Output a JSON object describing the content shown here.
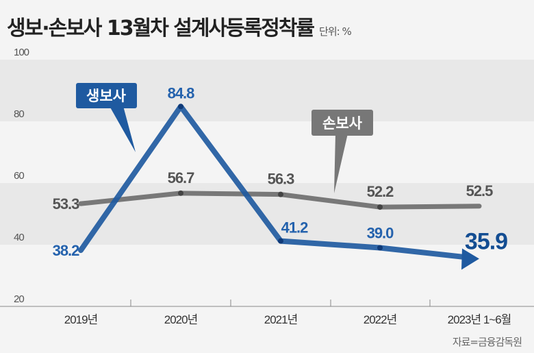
{
  "title": "생보·손보사 13월차 설계사등록정착률",
  "unit": "단위: %",
  "source": "자료=금융감독원",
  "chart_data": {
    "type": "line",
    "categories": [
      "2019년",
      "2020년",
      "2021년",
      "2022년",
      "2023년 1~6월"
    ],
    "ylim": [
      20,
      100
    ],
    "yticks": [
      20,
      40,
      60,
      80,
      100
    ],
    "grid": "alternating horizontal bands",
    "series": [
      {
        "name": "생보사",
        "values": [
          38.2,
          84.8,
          41.2,
          39.0,
          35.9
        ],
        "labels": [
          "38.2",
          "84.8",
          "41.2",
          "39.0",
          "35.9"
        ],
        "color": "#1f5aa0"
      },
      {
        "name": "손보사",
        "values": [
          53.3,
          56.7,
          56.3,
          52.2,
          52.5
        ],
        "labels": [
          "53.3",
          "56.7",
          "56.3",
          "52.2",
          "52.5"
        ],
        "color": "#6b6b6b"
      }
    ]
  }
}
